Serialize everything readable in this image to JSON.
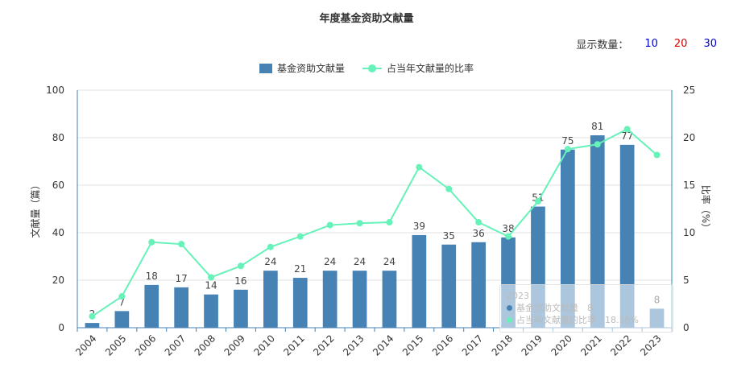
{
  "title": "年度基金资助文献量",
  "display_count": {
    "label": "显示数量：",
    "options": [
      {
        "label": "10",
        "state": "inactive"
      },
      {
        "label": "20",
        "state": "active"
      },
      {
        "label": "30",
        "state": "inactive"
      }
    ]
  },
  "legend": {
    "bar_label": "基金资助文献量",
    "line_label": "占当年文献量的比率"
  },
  "colors": {
    "bar": "#4682b4",
    "line": "#66f2b8",
    "axis_left": "#4682b4",
    "axis_right": "#2196a8",
    "grid": "#e0e0e0"
  },
  "tooltip": {
    "year": "2023",
    "bar_label": "基金资助文献量",
    "bar_value": "8",
    "line_label": "占当年文献量的比率",
    "line_value": "18.18%"
  },
  "chart_data": {
    "type": "bar",
    "title": "年度基金资助文献量",
    "categories": [
      "2004",
      "2005",
      "2006",
      "2007",
      "2008",
      "2009",
      "2010",
      "2011",
      "2012",
      "2013",
      "2014",
      "2015",
      "2016",
      "2017",
      "2018",
      "2019",
      "2020",
      "2021",
      "2022",
      "2023"
    ],
    "series": [
      {
        "name": "基金资助文献量",
        "type": "bar",
        "axis": "left",
        "values": [
          2,
          7,
          18,
          17,
          14,
          16,
          24,
          21,
          24,
          24,
          24,
          39,
          35,
          36,
          38,
          51,
          75,
          81,
          77,
          8
        ]
      },
      {
        "name": "占当年文献量的比率",
        "type": "line",
        "axis": "right",
        "values": [
          1.2,
          3.3,
          9.0,
          8.8,
          5.3,
          6.5,
          8.5,
          9.6,
          10.8,
          11.0,
          11.1,
          16.9,
          14.6,
          11.1,
          9.6,
          13.3,
          18.8,
          19.3,
          20.9,
          18.18
        ]
      }
    ],
    "ylabel": "文献量（篇）",
    "y2label": "比率（%）",
    "ylim": [
      0,
      100
    ],
    "y2lim": [
      0,
      25
    ],
    "yticks": [
      "0",
      "20",
      "40",
      "60",
      "80",
      "100"
    ],
    "y2ticks": [
      "0",
      "5",
      "10",
      "15",
      "20",
      "25"
    ],
    "grid": true,
    "legend_position": "top-center"
  }
}
